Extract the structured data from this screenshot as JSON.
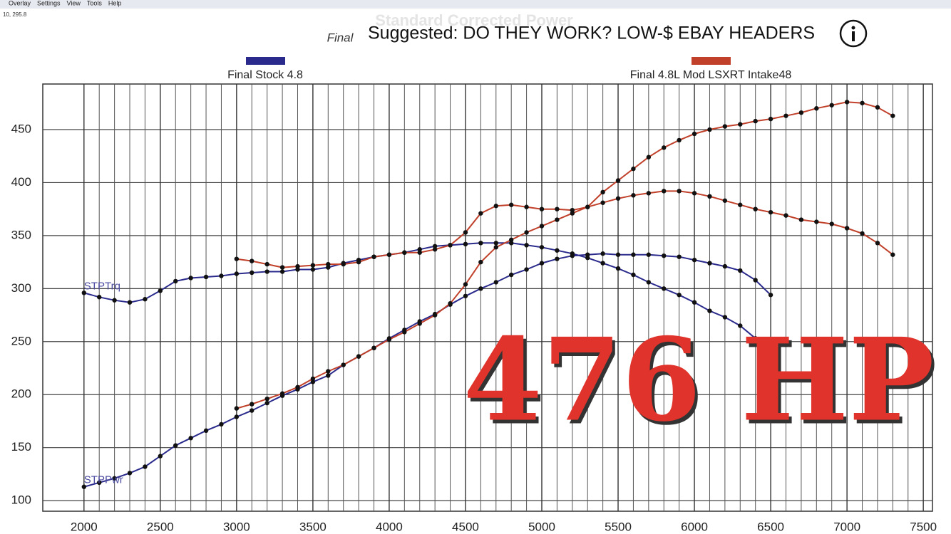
{
  "window": {
    "menu": [
      "Overlay",
      "Settings",
      "View",
      "Tools",
      "Help"
    ],
    "cursor_readout": "10, 295.8"
  },
  "overlay": {
    "suggested": "Suggested: DO THEY WORK? LOW-$ EBAY HEADERS",
    "headline": "476 HP"
  },
  "chart_data": {
    "type": "line",
    "title": "Standard Corrected Power",
    "subtitle": "Final",
    "curve_labels": {
      "torque": "STPTrq",
      "power": "STPPwr"
    },
    "xlim": [
      1730,
      7560
    ],
    "ylim": [
      90,
      493
    ],
    "xticks": [
      2000,
      2500,
      3000,
      3500,
      4000,
      4500,
      5000,
      5500,
      6000,
      6500,
      7000,
      7500
    ],
    "yticks": [
      100,
      150,
      200,
      250,
      300,
      350,
      400,
      450
    ],
    "grid": true,
    "series": [
      {
        "name": "Final Stock 4.8",
        "color": "#2a2a8c",
        "x": [
          2000,
          2100,
          2200,
          2300,
          2400,
          2500,
          2600,
          2700,
          2800,
          2900,
          3000,
          3100,
          3200,
          3300,
          3400,
          3500,
          3600,
          3700,
          3800,
          3900,
          4000,
          4100,
          4200,
          4300,
          4400,
          4500,
          4600,
          4700,
          4800,
          4900,
          5000,
          5100,
          5200,
          5300,
          5400,
          5500,
          5600,
          5700,
          5800,
          5900,
          6000,
          6100,
          6200,
          6300,
          6400,
          6500
        ],
        "torque": [
          296,
          292,
          289,
          287,
          290,
          298,
          307,
          310,
          311,
          312,
          314,
          315,
          316,
          316,
          318,
          318,
          320,
          324,
          327,
          330,
          332,
          334,
          337,
          340,
          341,
          342,
          343,
          343,
          343,
          341,
          339,
          336,
          333,
          329,
          324,
          319,
          313,
          306,
          300,
          294,
          287,
          279,
          273,
          265,
          253,
          null
        ],
        "power": [
          113,
          117,
          121,
          126,
          132,
          142,
          152,
          159,
          166,
          172,
          179,
          185,
          192,
          199,
          205,
          212,
          218,
          228,
          236,
          244,
          253,
          261,
          269,
          276,
          285,
          293,
          300,
          306,
          313,
          318,
          324,
          328,
          331,
          332,
          333,
          332,
          332,
          332,
          331,
          330,
          327,
          324,
          321,
          317,
          308,
          294
        ]
      },
      {
        "name": "Final 4.8L Mod LSXRT Intake48",
        "color": "#c0402a",
        "x": [
          3000,
          3100,
          3200,
          3300,
          3400,
          3500,
          3600,
          3700,
          3800,
          3900,
          4000,
          4100,
          4200,
          4300,
          4400,
          4500,
          4600,
          4700,
          4800,
          4900,
          5000,
          5100,
          5200,
          5300,
          5400,
          5500,
          5600,
          5700,
          5800,
          5900,
          6000,
          6100,
          6200,
          6300,
          6400,
          6500,
          6600,
          6700,
          6800,
          6900,
          7000,
          7100,
          7200,
          7300
        ],
        "torque": [
          328,
          326,
          323,
          320,
          321,
          322,
          323,
          323,
          325,
          330,
          332,
          334,
          334,
          337,
          341,
          353,
          371,
          378,
          379,
          377,
          375,
          375,
          374,
          377,
          381,
          385,
          388,
          390,
          392,
          392,
          390,
          387,
          383,
          379,
          375,
          372,
          369,
          365,
          363,
          361,
          357,
          352,
          343,
          332
        ],
        "power": [
          187,
          191,
          196,
          201,
          207,
          215,
          222,
          228,
          236,
          244,
          252,
          259,
          267,
          275,
          286,
          304,
          325,
          339,
          346,
          353,
          359,
          365,
          371,
          377,
          391,
          402,
          413,
          424,
          433,
          440,
          446,
          450,
          453,
          455,
          458,
          460,
          463,
          466,
          470,
          473,
          476,
          475,
          471,
          463
        ]
      }
    ]
  }
}
